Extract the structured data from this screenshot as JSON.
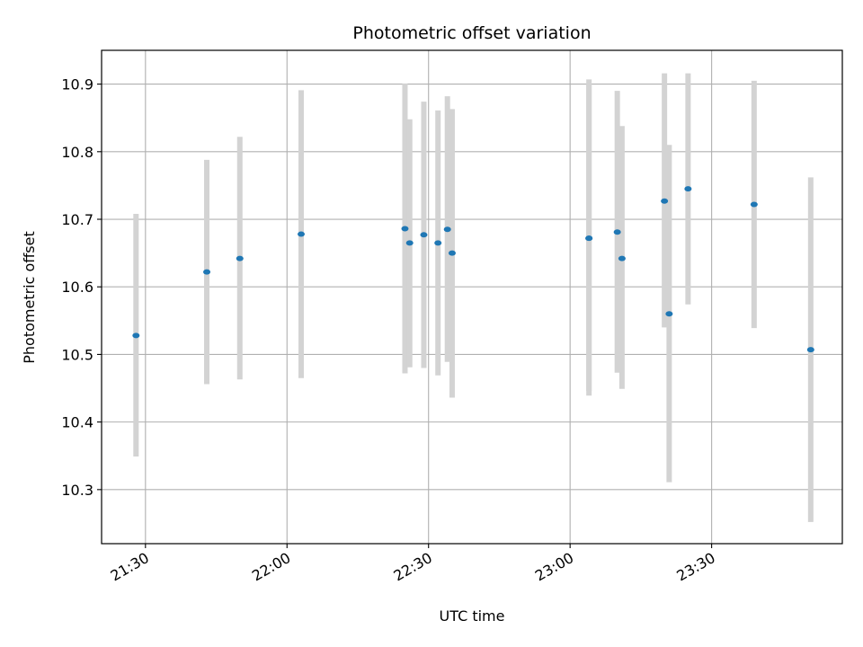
{
  "chart_data": {
    "type": "scatter",
    "title": "Photometric offset variation",
    "xlabel": "UTC time",
    "ylabel": "Photometric offset",
    "x_tick_labels": [
      "21:30",
      "22:00",
      "22:30",
      "23:00",
      "23:30"
    ],
    "x_tick_minutes": [
      1290,
      1320,
      1350,
      1380,
      1410
    ],
    "xlim_minutes": [
      1280.7,
      1437.7
    ],
    "ylim": [
      10.22,
      10.95
    ],
    "y_ticks": [
      10.3,
      10.4,
      10.5,
      10.6,
      10.7,
      10.8,
      10.9
    ],
    "y_tick_labels": [
      "10.3",
      "10.4",
      "10.5",
      "10.6",
      "10.7",
      "10.8",
      "10.9"
    ],
    "grid": true,
    "colors": {
      "marker": "#1f77b4",
      "errorbar": "#d3d3d3",
      "grid": "#b0b0b0"
    },
    "points": [
      {
        "time": "21:28",
        "y": 10.528,
        "ylo": 10.349,
        "yhi": 10.708
      },
      {
        "time": "21:43",
        "y": 10.622,
        "ylo": 10.456,
        "yhi": 10.788
      },
      {
        "time": "21:50",
        "y": 10.642,
        "ylo": 10.463,
        "yhi": 10.822
      },
      {
        "time": "22:03",
        "y": 10.678,
        "ylo": 10.465,
        "yhi": 10.891
      },
      {
        "time": "22:25",
        "y": 10.686,
        "ylo": 10.472,
        "yhi": 10.901
      },
      {
        "time": "22:26",
        "y": 10.665,
        "ylo": 10.481,
        "yhi": 10.848
      },
      {
        "time": "22:29",
        "y": 10.677,
        "ylo": 10.48,
        "yhi": 10.874
      },
      {
        "time": "22:32",
        "y": 10.665,
        "ylo": 10.469,
        "yhi": 10.861
      },
      {
        "time": "22:34",
        "y": 10.685,
        "ylo": 10.489,
        "yhi": 10.882
      },
      {
        "time": "22:35",
        "y": 10.65,
        "ylo": 10.436,
        "yhi": 10.863
      },
      {
        "time": "23:04",
        "y": 10.672,
        "ylo": 10.439,
        "yhi": 10.907
      },
      {
        "time": "23:04",
        "y": 10.672,
        "ylo": 10.446,
        "yhi": 10.9
      },
      {
        "time": "23:10",
        "y": 10.681,
        "ylo": 10.473,
        "yhi": 10.89
      },
      {
        "time": "23:11",
        "y": 10.642,
        "ylo": 10.449,
        "yhi": 10.838
      },
      {
        "time": "23:20",
        "y": 10.727,
        "ylo": 10.54,
        "yhi": 10.916
      },
      {
        "time": "23:21",
        "y": 10.56,
        "ylo": 10.311,
        "yhi": 10.81
      },
      {
        "time": "23:25",
        "y": 10.745,
        "ylo": 10.574,
        "yhi": 10.916
      },
      {
        "time": "23:39",
        "y": 10.722,
        "ylo": 10.539,
        "yhi": 10.905
      },
      {
        "time": "23:51",
        "y": 10.507,
        "ylo": 10.252,
        "yhi": 10.762
      }
    ]
  }
}
